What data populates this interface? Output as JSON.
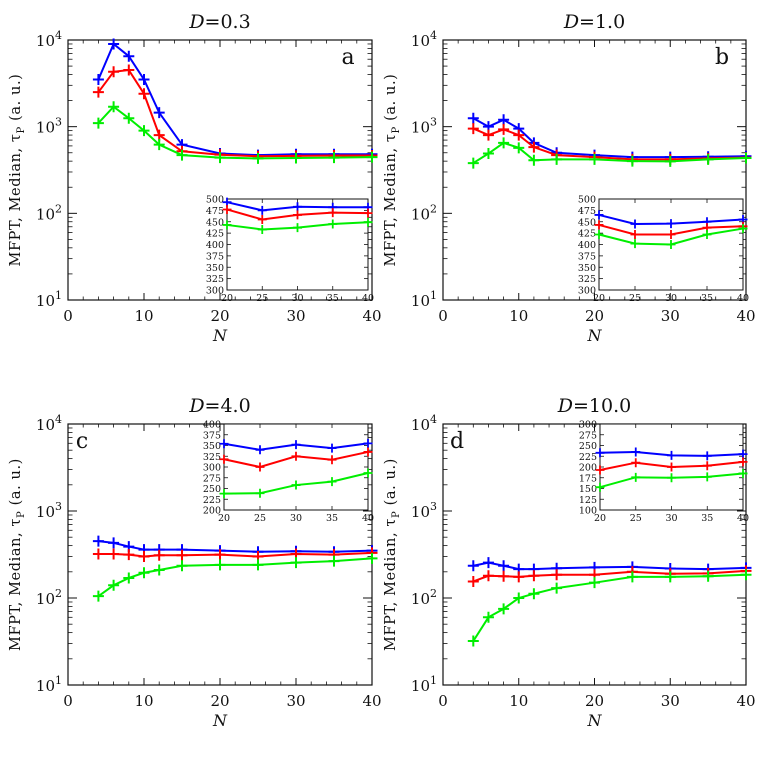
{
  "figure": {
    "ylabel_text": "MFPT, Median, τ",
    "ylabel_sub": "P",
    "ylabel_unit": " (a. u.)",
    "xlabel_text": "N"
  },
  "chart_data": [
    {
      "type": "line",
      "title_prefix": "D",
      "title_value": "=0.3",
      "panel_letter": "a",
      "xlabel": "N",
      "ylabel": "MFPT, Median, τP (a. u.)",
      "yscale": "log",
      "xlim": [
        0,
        40
      ],
      "ylim": [
        10,
        10000
      ],
      "x": [
        4,
        6,
        8,
        10,
        12,
        15,
        20,
        25,
        30,
        35,
        40
      ],
      "series": [
        {
          "color": "#0000ff",
          "values": [
            3500,
            9000,
            6500,
            3500,
            1450,
            620,
            490,
            470,
            480,
            480,
            480
          ]
        },
        {
          "color": "#ff0000",
          "values": [
            2500,
            4300,
            4500,
            2400,
            800,
            520,
            475,
            455,
            460,
            465,
            465
          ]
        },
        {
          "color": "#00ee00",
          "values": [
            1100,
            1700,
            1250,
            900,
            620,
            470,
            440,
            430,
            435,
            440,
            445
          ]
        }
      ],
      "inset": {
        "xlim": [
          20,
          40
        ],
        "ylim": [
          300,
          500
        ],
        "x": [
          20,
          25,
          30,
          35,
          40
        ],
        "series": [
          {
            "color": "#0000ff",
            "values": [
              493,
              475,
              483,
              482,
              482
            ]
          },
          {
            "color": "#ff0000",
            "values": [
              477,
              455,
              465,
              470,
              469
            ]
          },
          {
            "color": "#00ee00",
            "values": [
              443,
              433,
              437,
              445,
              449
            ]
          }
        ]
      }
    },
    {
      "type": "line",
      "title_prefix": "D",
      "title_value": "=1.0",
      "panel_letter": "b",
      "xlabel": "N",
      "ylabel": "MFPT, Median, τP (a. u.)",
      "yscale": "log",
      "xlim": [
        0,
        40
      ],
      "ylim": [
        10,
        10000
      ],
      "x": [
        4,
        6,
        8,
        10,
        12,
        15,
        20,
        25,
        30,
        35,
        40
      ],
      "series": [
        {
          "color": "#0000ff",
          "values": [
            1250,
            1000,
            1200,
            950,
            650,
            500,
            470,
            445,
            445,
            450,
            455
          ]
        },
        {
          "color": "#ff0000",
          "values": [
            950,
            800,
            930,
            800,
            580,
            470,
            445,
            420,
            420,
            430,
            440
          ]
        },
        {
          "color": "#00ee00",
          "values": [
            380,
            490,
            650,
            570,
            410,
            420,
            420,
            400,
            398,
            420,
            435
          ]
        }
      ],
      "inset": {
        "xlim": [
          20,
          40
        ],
        "ylim": [
          300,
          500
        ],
        "x": [
          20,
          25,
          30,
          35,
          40
        ],
        "series": [
          {
            "color": "#0000ff",
            "values": [
              465,
              445,
              446,
              450,
              455
            ]
          },
          {
            "color": "#ff0000",
            "values": [
              443,
              422,
              422,
              437,
              440
            ]
          },
          {
            "color": "#00ee00",
            "values": [
              422,
              402,
              400,
              422,
              435
            ]
          }
        ]
      }
    },
    {
      "type": "line",
      "title_prefix": "D",
      "title_value": "=4.0",
      "panel_letter": "c",
      "xlabel": "N",
      "ylabel": "MFPT, Median, τP (a. u.)",
      "yscale": "log",
      "xlim": [
        0,
        40
      ],
      "ylim": [
        10,
        10000
      ],
      "x": [
        4,
        6,
        8,
        10,
        12,
        15,
        20,
        25,
        30,
        35,
        40
      ],
      "series": [
        {
          "color": "#0000ff",
          "values": [
            450,
            430,
            390,
            360,
            360,
            360,
            350,
            340,
            345,
            340,
            350
          ]
        },
        {
          "color": "#ff0000",
          "values": [
            320,
            320,
            315,
            300,
            310,
            310,
            315,
            300,
            320,
            315,
            330
          ]
        },
        {
          "color": "#00ee00",
          "values": [
            105,
            140,
            170,
            195,
            210,
            235,
            240,
            240,
            255,
            265,
            285
          ]
        }
      ],
      "inset": {
        "xlim": [
          20,
          40
        ],
        "ylim": [
          200,
          400
        ],
        "x": [
          20,
          25,
          30,
          35,
          40
        ],
        "series": [
          {
            "color": "#0000ff",
            "values": [
              354,
              340,
              352,
              344,
              355
            ]
          },
          {
            "color": "#ff0000",
            "values": [
              318,
              300,
              325,
              317,
              335
            ]
          },
          {
            "color": "#00ee00",
            "values": [
              238,
              239,
              258,
              266,
              286
            ]
          }
        ]
      }
    },
    {
      "type": "line",
      "title_prefix": "D",
      "title_value": "=10.0",
      "panel_letter": "d",
      "xlabel": "N",
      "ylabel": "MFPT, Median, τP (a. u.)",
      "yscale": "log",
      "xlim": [
        0,
        40
      ],
      "ylim": [
        10,
        10000
      ],
      "x": [
        4,
        6,
        8,
        10,
        12,
        15,
        20,
        25,
        30,
        35,
        40
      ],
      "series": [
        {
          "color": "#0000ff",
          "values": [
            235,
            255,
            235,
            215,
            215,
            220,
            225,
            228,
            218,
            215,
            222
          ]
        },
        {
          "color": "#ff0000",
          "values": [
            155,
            180,
            178,
            175,
            180,
            185,
            185,
            200,
            190,
            192,
            205
          ]
        },
        {
          "color": "#00ee00",
          "values": [
            32,
            60,
            75,
            100,
            112,
            130,
            150,
            175,
            175,
            178,
            185
          ]
        }
      ],
      "inset": {
        "xlim": [
          20,
          40
        ],
        "ylim": [
          100,
          300
        ],
        "x": [
          20,
          25,
          30,
          35,
          40
        ],
        "series": [
          {
            "color": "#0000ff",
            "values": [
              233,
              235,
              227,
              226,
              230
            ]
          },
          {
            "color": "#ff0000",
            "values": [
              193,
              210,
              200,
              203,
              212
            ]
          },
          {
            "color": "#00ee00",
            "values": [
              153,
              176,
              175,
              177,
              185
            ]
          }
        ]
      }
    }
  ]
}
